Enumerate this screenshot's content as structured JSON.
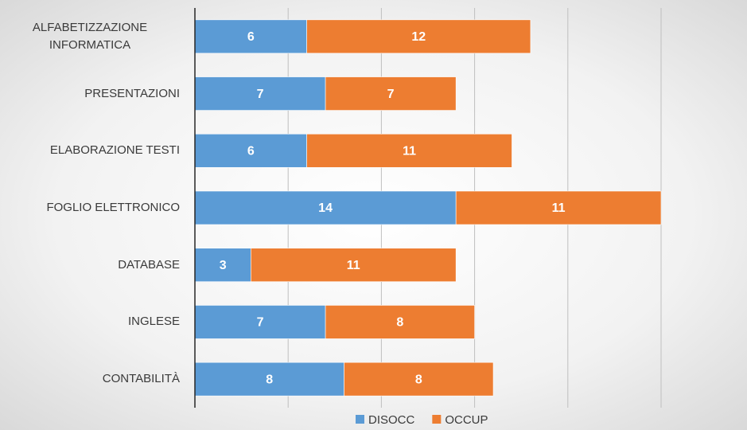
{
  "chart_data": {
    "type": "stacked_barh",
    "categories": [
      "ALFABETIZZAZIONE INFORMATICA",
      "PRESENTAZIONI",
      "ELABORAZIONE TESTI",
      "FOGLIO ELETTRONICO",
      "DATABASE",
      "INGLESE",
      "CONTABILITÀ"
    ],
    "series": [
      {
        "name": "DISOCC",
        "color": "#5b9bd5",
        "values": [
          6,
          7,
          6,
          14,
          3,
          7,
          8
        ]
      },
      {
        "name": "OCCUP",
        "color": "#ed7d31",
        "values": [
          12,
          7,
          11,
          11,
          11,
          8,
          8
        ]
      }
    ],
    "xlim": [
      0,
      25
    ],
    "xticks": [
      0,
      5,
      10,
      15,
      20,
      25
    ],
    "grid": true
  }
}
